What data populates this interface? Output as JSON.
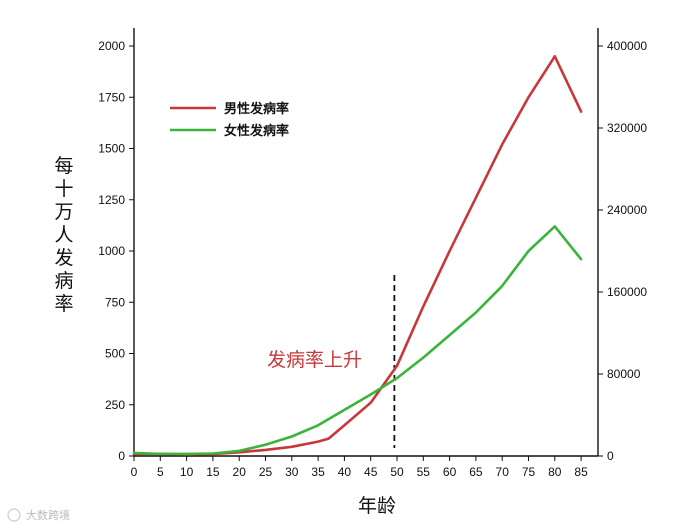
{
  "chart_data": {
    "type": "line",
    "xlabel": "年龄",
    "ylabel": "每十万人发病率",
    "xlim": [
      0,
      88
    ],
    "ylim": [
      0,
      2000
    ],
    "y2lim": [
      0,
      400000
    ],
    "x_ticks": [
      0,
      5,
      10,
      15,
      20,
      25,
      30,
      35,
      40,
      45,
      50,
      55,
      60,
      65,
      70,
      75,
      80,
      85
    ],
    "y_ticks": [
      0,
      250,
      500,
      750,
      1000,
      1250,
      1500,
      1750,
      2000
    ],
    "y2_ticks": [
      0,
      80000,
      160000,
      240000,
      320000,
      400000
    ],
    "legend_position": "top-left",
    "series": [
      {
        "name": "男性发病率",
        "color": "#c8373a",
        "x": [
          0,
          5,
          10,
          15,
          20,
          25,
          30,
          35,
          37,
          40,
          45,
          50,
          55,
          60,
          65,
          70,
          75,
          80,
          85
        ],
        "y": [
          10,
          10,
          8,
          10,
          18,
          30,
          45,
          70,
          85,
          150,
          260,
          440,
          730,
          1000,
          1260,
          1520,
          1750,
          1950,
          1680
        ]
      },
      {
        "name": "女性发病率",
        "color": "#3cb43c",
        "x": [
          0,
          5,
          10,
          15,
          20,
          25,
          30,
          35,
          40,
          45,
          50,
          55,
          60,
          65,
          70,
          75,
          80,
          85
        ],
        "y": [
          15,
          10,
          10,
          12,
          25,
          55,
          95,
          150,
          225,
          300,
          380,
          480,
          590,
          700,
          830,
          1000,
          1120,
          960
        ]
      }
    ],
    "annotations": [
      {
        "text": "发病率上升",
        "color": "#c8373a",
        "x": 50,
        "y": 500
      }
    ],
    "vline": {
      "x": 49.5,
      "style": "dashed"
    }
  },
  "watermark": "大数跨境"
}
